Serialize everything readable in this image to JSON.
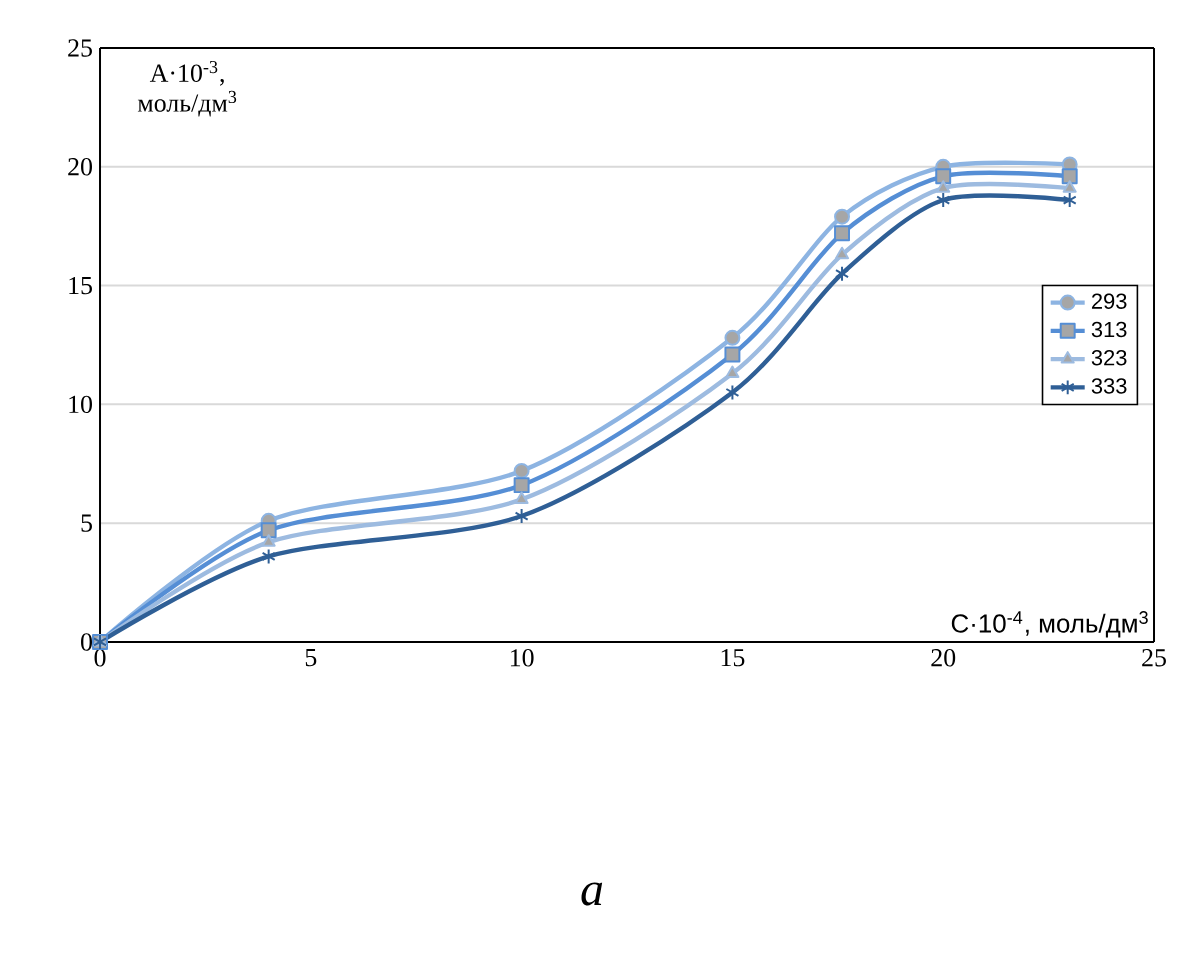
{
  "chart_data": {
    "type": "line",
    "xlabel": "C·10$^{-4}$, моль/дм$^{3}$",
    "ylabel": "A·10$^{-3}$, моль/дм$^{3}$",
    "annotations": [
      "a"
    ],
    "x": [
      0,
      4,
      10,
      15,
      17.6,
      20,
      23
    ],
    "series": [
      {
        "name": "293",
        "color": "#8db4e2",
        "marker": "circle",
        "values": [
          0,
          5.1,
          7.2,
          12.8,
          17.9,
          20.0,
          20.1
        ]
      },
      {
        "name": "313",
        "color": "#558ed5",
        "marker": "square",
        "values": [
          0,
          4.7,
          6.6,
          12.1,
          17.2,
          19.6,
          19.6
        ]
      },
      {
        "name": "323",
        "color": "#9dbbe0",
        "marker": "triangle",
        "values": [
          0,
          4.2,
          6.0,
          11.3,
          16.3,
          19.1,
          19.1
        ]
      },
      {
        "name": "333",
        "color": "#2f5f96",
        "marker": "cross",
        "values": [
          0,
          3.6,
          5.3,
          10.5,
          15.5,
          18.6,
          18.6
        ]
      }
    ],
    "xlim": [
      0,
      25
    ],
    "ylim": [
      0,
      25
    ],
    "xticks": [
      0,
      5,
      10,
      15,
      20,
      25
    ],
    "yticks": [
      0,
      5,
      10,
      15,
      20,
      25
    ],
    "grid": "y",
    "legend": "right",
    "line_style": "solid"
  }
}
